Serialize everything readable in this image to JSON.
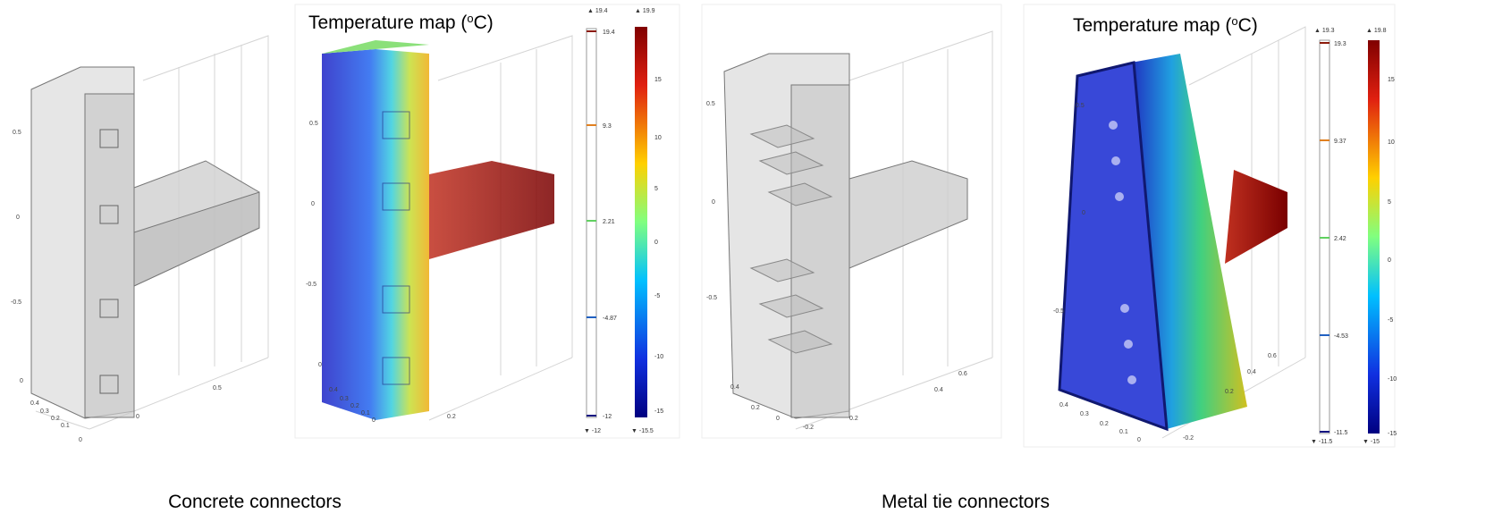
{
  "panels": [
    {
      "axis_labels": [
        "0.5",
        "0",
        "-0.5",
        "0",
        "0.4",
        "0.3",
        "0.2",
        "0.1",
        "0",
        "0",
        "0.5"
      ]
    },
    {
      "title": [
        "Temperature map (",
        "o",
        "C)"
      ],
      "axis_labels": [
        "0.5",
        "0",
        "-0.5",
        "0",
        "0.4",
        "0.3",
        "0.2",
        "0.1",
        "0",
        "0.2"
      ],
      "colorbars": [
        {
          "max": "▲ 19.4",
          "labels": [
            "19.4",
            "9.3",
            "2.21",
            "-4.87",
            "-12"
          ],
          "min": "▼ -12"
        },
        {
          "max": "▲ 19.9",
          "labels": [
            "15",
            "10",
            "5",
            "0",
            "-5",
            "-10",
            "-15"
          ],
          "min": "▼ -15.5"
        }
      ]
    },
    {
      "axis_labels": [
        "0.5",
        "0",
        "-0.5",
        "0.4",
        "0.2",
        "0",
        "-0.2",
        "0.2",
        "0.4",
        "0.6"
      ]
    },
    {
      "title": [
        "Temperature map (",
        "o",
        "C)"
      ],
      "axis_labels": [
        "0.5",
        "0",
        "-0.5",
        "0.4",
        "0.3",
        "0.2",
        "0.1",
        "0",
        "-0.2",
        "0.2",
        "0.4",
        "0.6"
      ],
      "colorbars": [
        {
          "max": "▲ 19.3",
          "labels": [
            "19.3",
            "9.37",
            "2.42",
            "-4.53",
            "-11.5"
          ],
          "min": "▼ -11.5"
        },
        {
          "max": "▲ 19.8",
          "labels": [
            "15",
            "10",
            "5",
            "0",
            "-5",
            "-10",
            "-15"
          ],
          "min": "▼ -15"
        }
      ]
    }
  ],
  "captions": [
    "Concrete connectors",
    "Metal tie connectors"
  ]
}
